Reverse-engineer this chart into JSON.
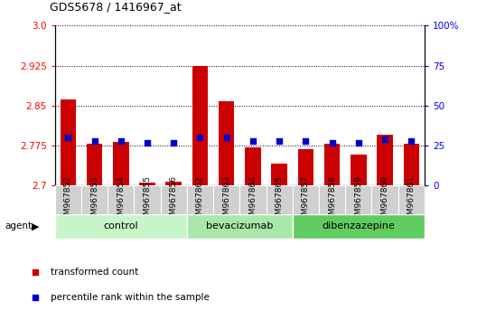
{
  "title": "GDS5678 / 1416967_at",
  "samples": [
    "GSM967852",
    "GSM967853",
    "GSM967854",
    "GSM967855",
    "GSM967856",
    "GSM967862",
    "GSM967863",
    "GSM967864",
    "GSM967865",
    "GSM967857",
    "GSM967858",
    "GSM967859",
    "GSM967860",
    "GSM967861"
  ],
  "transformed_count": [
    2.862,
    2.778,
    2.782,
    2.706,
    2.707,
    2.925,
    2.858,
    2.771,
    2.742,
    2.768,
    2.778,
    2.758,
    2.795,
    2.778
  ],
  "percentile_rank": [
    30,
    28,
    28,
    27,
    27,
    30,
    30,
    28,
    28,
    28,
    27,
    27,
    29,
    28
  ],
  "groups": [
    {
      "name": "control",
      "start": 0,
      "end": 5,
      "color": "#c8f5c8"
    },
    {
      "name": "bevacizumab",
      "start": 5,
      "end": 9,
      "color": "#a8e8a8"
    },
    {
      "name": "dibenzazepine",
      "start": 9,
      "end": 14,
      "color": "#60cc60"
    }
  ],
  "ylim_left": [
    2.7,
    3.0
  ],
  "ylim_right": [
    0,
    100
  ],
  "yticks_left": [
    2.7,
    2.775,
    2.85,
    2.925,
    3.0
  ],
  "yticks_right": [
    0,
    25,
    50,
    75,
    100
  ],
  "bar_color": "#cc0000",
  "dot_color": "#0000cc",
  "agent_label": "agent",
  "legend_items": [
    {
      "label": "transformed count",
      "color": "#cc0000"
    },
    {
      "label": "percentile rank within the sample",
      "color": "#0000cc"
    }
  ]
}
